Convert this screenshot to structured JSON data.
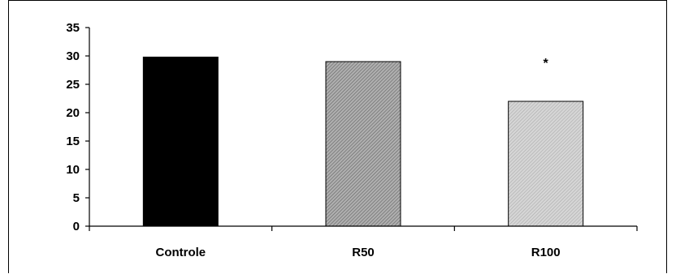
{
  "chart_data": {
    "type": "bar",
    "categories": [
      "Controle",
      "R50",
      "R100"
    ],
    "values": [
      29.8,
      29,
      22
    ],
    "title": "",
    "xlabel": "",
    "ylabel": "",
    "ylim": [
      0,
      35
    ],
    "yticks": [
      0,
      5,
      10,
      15,
      20,
      25,
      30,
      35
    ],
    "ytick_labels": [
      "0",
      "5",
      "10",
      "15",
      "20",
      "25",
      "30",
      "35"
    ],
    "grid": false,
    "bar_styles": [
      "solid-black",
      "dark-gray-hatch",
      "light-gray-hatch"
    ],
    "colors": [
      "#000000",
      "#9a9a9a",
      "#c8c8c8"
    ],
    "annotations": [
      {
        "category": "R100",
        "text": "*"
      }
    ]
  }
}
